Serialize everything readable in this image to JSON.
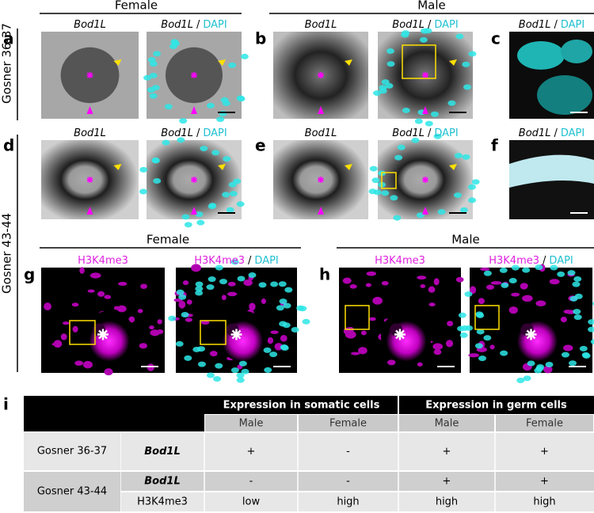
{
  "panels": [
    "a",
    "b",
    "c",
    "d",
    "e",
    "f",
    "g",
    "h",
    "i"
  ],
  "sexes": [
    "Female",
    "Male"
  ],
  "stages": [
    "Gosner 36-37",
    "Gosner 43-44"
  ],
  "markers": [
    "Bod1L",
    "H3K4me3"
  ],
  "separator": "/",
  "counterstain": "DAPI",
  "table": {
    "headers": [
      "Expression in somatic cells",
      "Expression in germ cells"
    ],
    "rows": [
      {
        "cells": [
          "+",
          "-",
          "+",
          "+"
        ]
      },
      {
        "cells": [
          "-",
          "-",
          "+",
          "+"
        ]
      },
      {
        "cells": [
          "low",
          "high",
          "high",
          "high"
        ]
      }
    ]
  }
}
